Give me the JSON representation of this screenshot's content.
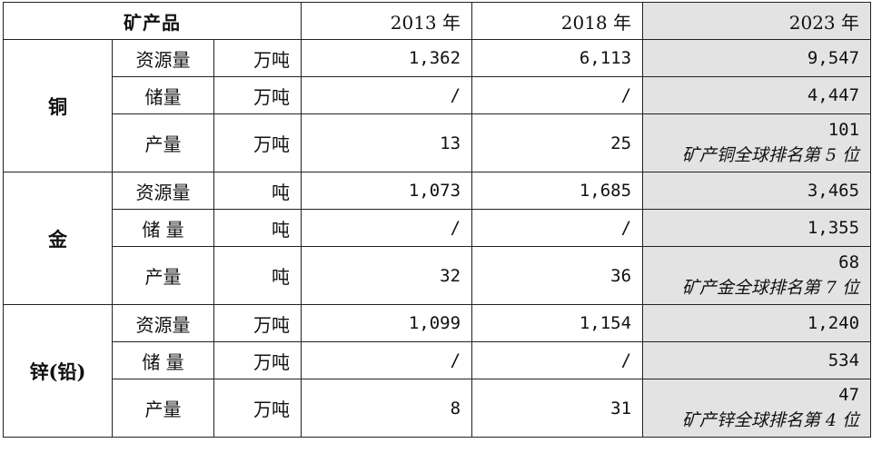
{
  "header": {
    "product": "矿产品",
    "years": [
      "2013 年",
      "2018 年",
      "2023 年"
    ]
  },
  "groups": [
    {
      "metal": "铜",
      "rows": [
        {
          "metric": "资源量",
          "unit": "万吨",
          "v2013": "1,362",
          "v2018": "6,113",
          "v2023": "9,547",
          "note": ""
        },
        {
          "metric": "储量",
          "unit": "万吨",
          "v2013": "/",
          "v2018": "/",
          "v2023": "4,447",
          "note": ""
        },
        {
          "metric": "产量",
          "unit": "万吨",
          "v2013": "13",
          "v2018": "25",
          "v2023": "101",
          "note": "矿产铜全球排名第 5 位"
        }
      ]
    },
    {
      "metal": "金",
      "rows": [
        {
          "metric": "资源量",
          "unit": "吨",
          "v2013": "1,073",
          "v2018": "1,685",
          "v2023": "3,465",
          "note": ""
        },
        {
          "metric": "储 量",
          "unit": "吨",
          "v2013": "/",
          "v2018": "/",
          "v2023": "1,355",
          "note": ""
        },
        {
          "metric": "产量",
          "unit": "吨",
          "v2013": "32",
          "v2018": "36",
          "v2023": "68",
          "note": "矿产金全球排名第 7 位"
        }
      ]
    },
    {
      "metal": "锌(铅)",
      "rows": [
        {
          "metric": "资源量",
          "unit": "万吨",
          "v2013": "1,099",
          "v2018": "1,154",
          "v2023": "1,240",
          "note": ""
        },
        {
          "metric": "储 量",
          "unit": "万吨",
          "v2013": "/",
          "v2018": "/",
          "v2023": "534",
          "note": ""
        },
        {
          "metric": "产量",
          "unit": "万吨",
          "v2013": "8",
          "v2018": "31",
          "v2023": "47",
          "note": "矿产锌全球排名第 4 位"
        }
      ]
    }
  ],
  "colors": {
    "highlight_column": "#e3e3e3",
    "border": "#222222"
  }
}
